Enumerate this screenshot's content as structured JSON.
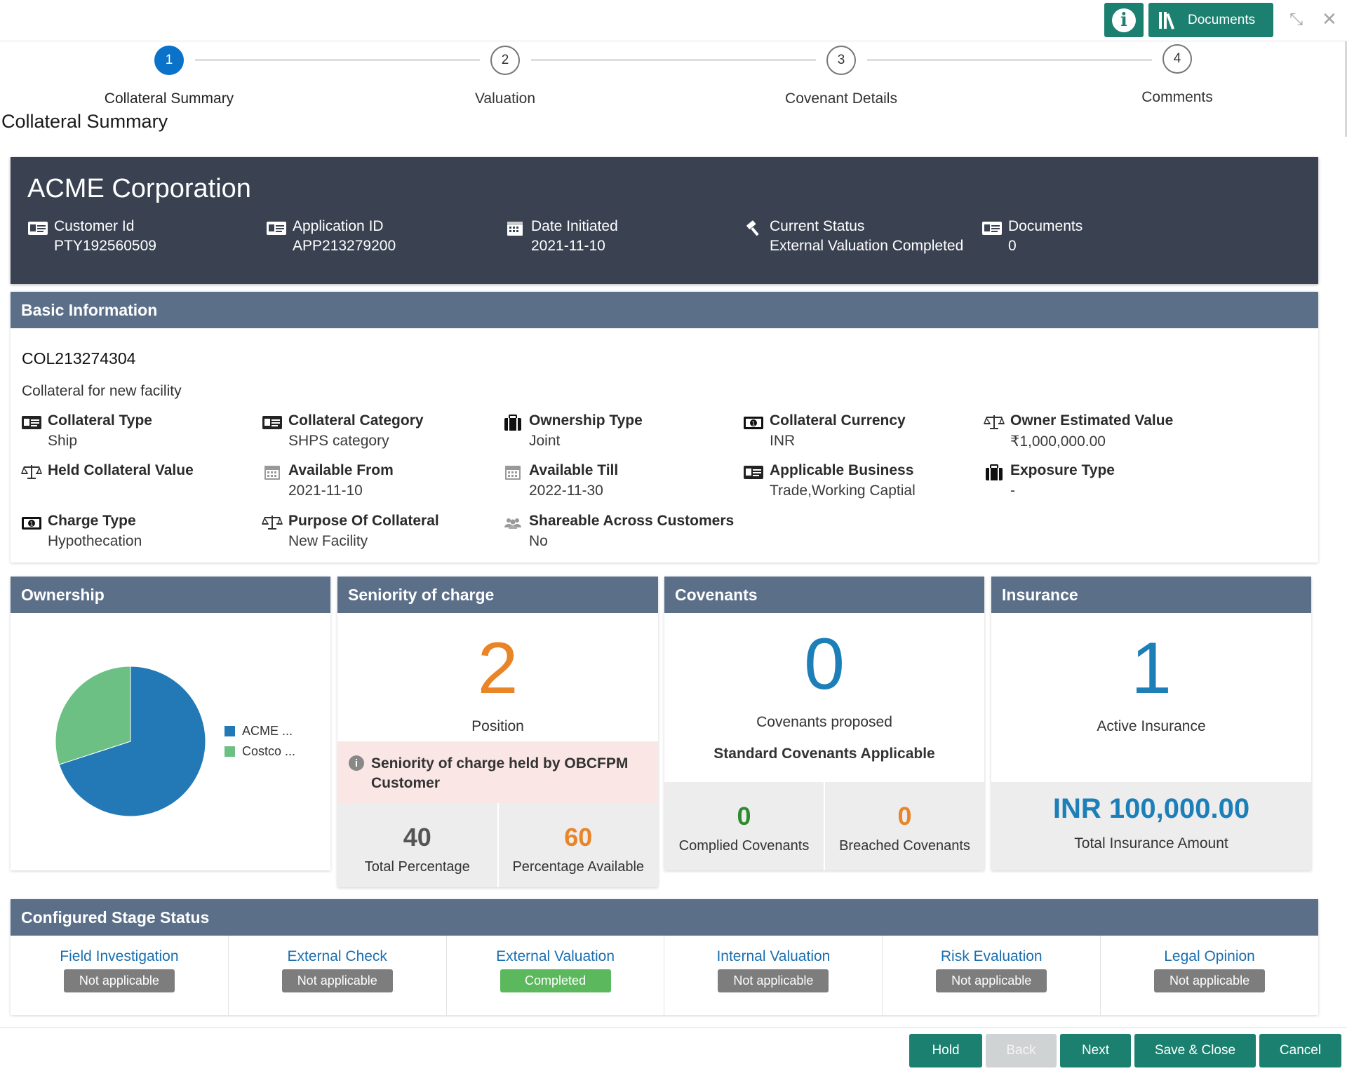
{
  "topbar": {
    "info_icon": "info-icon",
    "documents_label": "Documents",
    "minimize_icon": "compress-icon",
    "close_icon": "close-icon"
  },
  "stepper": {
    "steps": [
      {
        "number": "1",
        "label": "Collateral Summary",
        "active": true
      },
      {
        "number": "2",
        "label": "Valuation",
        "active": false
      },
      {
        "number": "3",
        "label": "Covenant Details",
        "active": false
      },
      {
        "number": "4",
        "label": "Comments",
        "active": false
      }
    ]
  },
  "page_title": "Collateral Summary",
  "header": {
    "name": "ACME Corporation",
    "items": [
      {
        "label": "Customer Id",
        "value": "PTY192560509",
        "icon": "id-card-icon"
      },
      {
        "label": "Application ID",
        "value": "APP213279200",
        "icon": "id-card-icon"
      },
      {
        "label": "Date Initiated",
        "value": "2021-11-10",
        "icon": "calendar-icon"
      },
      {
        "label": "Current Status",
        "value": "External Valuation Completed",
        "icon": "gavel-icon"
      },
      {
        "label": "Documents",
        "value": "0",
        "icon": "id-card-icon"
      }
    ]
  },
  "basic_info": {
    "title": "Basic Information",
    "collateral_id": "COL213274304",
    "description": "Collateral for new facility",
    "fields": [
      {
        "label": "Collateral Type",
        "value": "Ship",
        "icon": "id-card-icon"
      },
      {
        "label": "Collateral Category",
        "value": "SHPS category",
        "icon": "id-card-icon"
      },
      {
        "label": "Ownership Type",
        "value": "Joint",
        "icon": "briefcase-icon"
      },
      {
        "label": "Collateral Currency",
        "value": "INR",
        "icon": "banknote-icon"
      },
      {
        "label": "Owner Estimated Value",
        "value": "₹1,000,000.00",
        "icon": "scale-icon"
      },
      {
        "label": "Held Collateral Value",
        "value": "",
        "icon": "scale-icon"
      },
      {
        "label": "Available From",
        "value": "2021-11-10",
        "icon": "calendar-icon"
      },
      {
        "label": "Available Till",
        "value": "2022-11-30",
        "icon": "calendar-icon"
      },
      {
        "label": "Applicable Business",
        "value": "Trade,Working Captial",
        "icon": "id-card-icon"
      },
      {
        "label": "Exposure Type",
        "value": "-",
        "icon": "briefcase-icon"
      },
      {
        "label": "Charge Type",
        "value": "Hypothecation",
        "icon": "banknote-icon"
      },
      {
        "label": "Purpose Of Collateral",
        "value": "New Facility",
        "icon": "scale-icon"
      },
      {
        "label": "Shareable Across Customers",
        "value": "No",
        "icon": "users-icon"
      }
    ]
  },
  "ownership": {
    "title": "Ownership",
    "legend": [
      {
        "label": "ACME ...",
        "color": "#2279b5"
      },
      {
        "label": "Costco ...",
        "color": "#6cc084"
      }
    ],
    "chart_data": {
      "type": "pie",
      "categories": [
        "ACME ...",
        "Costco ..."
      ],
      "values": [
        70,
        30
      ],
      "colors": [
        "#2279b5",
        "#6cc084"
      ]
    }
  },
  "seniority": {
    "title": "Seniority of charge",
    "position_value": "2",
    "position_label": "Position",
    "warning": "Seniority of charge held by OBCFPM Customer",
    "total_percentage_value": "40",
    "total_percentage_label": "Total Percentage",
    "available_value": "60",
    "available_label": "Percentage Available"
  },
  "covenants": {
    "title": "Covenants",
    "count": "0",
    "proposed_label": "Covenants proposed",
    "standard_label": "Standard Covenants Applicable",
    "complied_value": "0",
    "complied_label": "Complied Covenants",
    "breached_value": "0",
    "breached_label": "Breached Covenants"
  },
  "insurance": {
    "title": "Insurance",
    "count": "1",
    "active_label": "Active Insurance",
    "amount": "INR 100,000.00",
    "amount_label": "Total Insurance Amount"
  },
  "stage_status": {
    "title": "Configured Stage Status",
    "stages": [
      {
        "name": "Field Investigation",
        "status": "Not applicable"
      },
      {
        "name": "External Check",
        "status": "Not applicable"
      },
      {
        "name": "External Valuation",
        "status": "Completed"
      },
      {
        "name": "Internal Valuation",
        "status": "Not applicable"
      },
      {
        "name": "Risk Evaluation",
        "status": "Not applicable"
      },
      {
        "name": "Legal Opinion",
        "status": "Not applicable"
      }
    ]
  },
  "footer": {
    "hold": "Hold",
    "back": "Back",
    "next": "Next",
    "save_close": "Save & Close",
    "cancel": "Cancel"
  },
  "colors": {
    "accent_teal": "#1b8070",
    "header_dark": "#3a4252",
    "panel_head": "#5b6f89",
    "orange": "#e98427",
    "blue": "#1d7fb8",
    "green": "#2e8b2e"
  }
}
